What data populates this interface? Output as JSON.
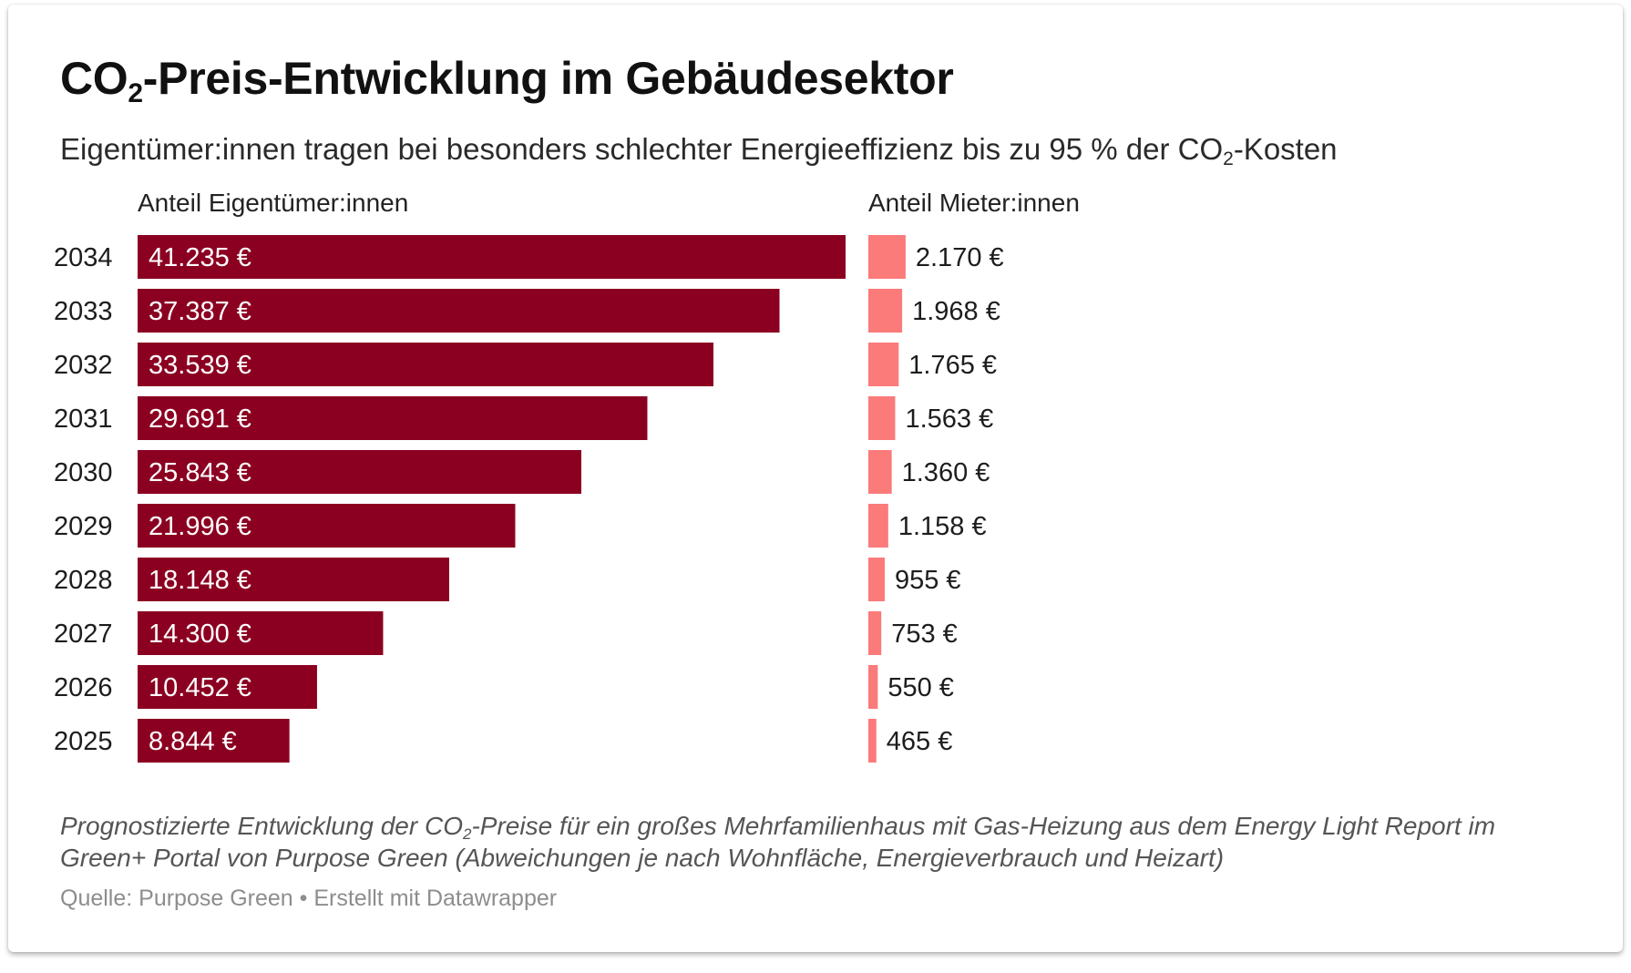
{
  "title": {
    "prefix": "CO",
    "subscript": "2",
    "suffix": "-Preis-Entwicklung im Gebäudesektor"
  },
  "subtitle": {
    "prefix": "Eigentümer:innen tragen bei besonders schlechter Energieeffizienz bis zu 95 % der CO",
    "subscript": "2",
    "suffix": "-Kosten"
  },
  "chart_data": {
    "type": "bar",
    "orientation": "horizontal",
    "categories": [
      "2034",
      "2033",
      "2032",
      "2031",
      "2030",
      "2029",
      "2028",
      "2027",
      "2026",
      "2025"
    ],
    "series": [
      {
        "name": "Anteil Eigentümer:innen",
        "color": "#8b0021",
        "values": [
          41235,
          37387,
          33539,
          29691,
          25843,
          21996,
          18148,
          14300,
          10452,
          8844
        ],
        "labels": [
          "41.235 €",
          "37.387 €",
          "33.539 €",
          "29.691 €",
          "25.843 €",
          "21.996 €",
          "18.148 €",
          "14.300 €",
          "10.452 €",
          "8.844 €"
        ],
        "xlim": [
          0,
          41235
        ]
      },
      {
        "name": "Anteil Mieter:innen",
        "color": "#fb7a7a",
        "values": [
          2170,
          1968,
          1765,
          1563,
          1360,
          1158,
          955,
          753,
          550,
          465
        ],
        "labels": [
          "2.170 €",
          "1.968 €",
          "1.765 €",
          "1.563 €",
          "1.360 €",
          "1.158 €",
          "955 €",
          "753 €",
          "550 €",
          "465 €"
        ],
        "xlim": [
          0,
          41235
        ]
      }
    ]
  },
  "notes": {
    "prefix": "Prognostizierte Entwicklung der CO",
    "subscript": "2",
    "suffix": "-Preise für ein großes Mehrfamilienhaus mit Gas-Heizung aus dem Energy Light Report im Green+ Portal von Purpose Green (Abweichungen je nach Wohnfläche, Energieverbrauch und Heizart)"
  },
  "source": "Quelle: Purpose Green • Erstellt mit Datawrapper"
}
